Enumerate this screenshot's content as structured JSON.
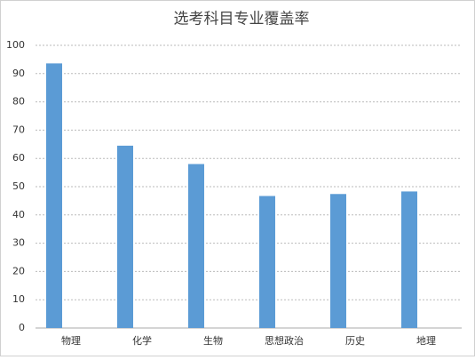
{
  "chart_data": {
    "type": "bar",
    "title": "选考科目专业覆盖率",
    "categories": [
      "物理",
      "化学",
      "生物",
      "思想政治",
      "历史",
      "地理"
    ],
    "values": [
      93.6,
      64.5,
      58,
      46.7,
      47.4,
      48.3
    ],
    "color": "#5b9bd5",
    "ylim": [
      0,
      100
    ],
    "yticks": [
      0,
      10,
      20,
      30,
      40,
      50,
      60,
      70,
      80,
      90,
      100
    ],
    "grid": true
  }
}
